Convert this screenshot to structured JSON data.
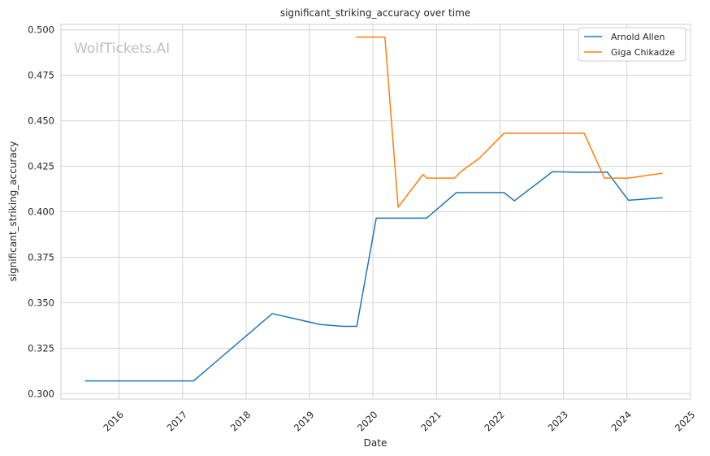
{
  "watermark": "WolfTickets.AI",
  "chart_data": {
    "type": "line",
    "title": "significant_striking_accuracy over time",
    "xlabel": "Date",
    "ylabel": "significant_striking_accuracy",
    "x_type": "date",
    "xlim": [
      "2015-02-01",
      "2025-01-01"
    ],
    "ylim": [
      0.297,
      0.503
    ],
    "x_ticks": [
      "2016-01-01",
      "2017-01-01",
      "2018-01-01",
      "2019-01-01",
      "2020-01-01",
      "2021-01-01",
      "2022-01-01",
      "2023-01-01",
      "2024-01-01",
      "2025-01-01"
    ],
    "x_tick_labels": [
      "2016",
      "2017",
      "2018",
      "2019",
      "2020",
      "2021",
      "2022",
      "2023",
      "2024",
      "2025"
    ],
    "y_ticks": [
      0.3,
      0.325,
      0.35,
      0.375,
      0.4,
      0.425,
      0.45,
      0.475,
      0.5
    ],
    "y_tick_labels": [
      "0.300",
      "0.325",
      "0.350",
      "0.375",
      "0.400",
      "0.425",
      "0.450",
      "0.475",
      "0.500"
    ],
    "grid": true,
    "legend_position": "top-right",
    "series": [
      {
        "name": "Arnold Allen",
        "color": "#1f77b4",
        "points": [
          [
            "2015-06-20",
            0.307
          ],
          [
            "2017-03-05",
            0.307
          ],
          [
            "2018-06-01",
            0.344
          ],
          [
            "2019-03-05",
            0.338
          ],
          [
            "2019-07-15",
            0.337
          ],
          [
            "2019-09-30",
            0.337
          ],
          [
            "2020-01-20",
            0.3965
          ],
          [
            "2020-11-05",
            0.3965
          ],
          [
            "2021-04-25",
            0.4105
          ],
          [
            "2022-01-25",
            0.4105
          ],
          [
            "2022-03-25",
            0.406
          ],
          [
            "2022-10-30",
            0.422
          ],
          [
            "2023-04-30",
            0.4217
          ],
          [
            "2023-09-10",
            0.4218
          ],
          [
            "2024-01-10",
            0.4063
          ],
          [
            "2024-07-25",
            0.4077
          ]
        ]
      },
      {
        "name": "Giga Chikadze",
        "color": "#ff7f0e",
        "points": [
          [
            "2019-09-25",
            0.496
          ],
          [
            "2020-03-10",
            0.496
          ],
          [
            "2020-05-25",
            0.4025
          ],
          [
            "2020-10-15",
            0.4205
          ],
          [
            "2020-11-05",
            0.4185
          ],
          [
            "2021-04-15",
            0.4185
          ],
          [
            "2021-05-20",
            0.422
          ],
          [
            "2021-09-05",
            0.4295
          ],
          [
            "2022-01-25",
            0.4432
          ],
          [
            "2023-04-30",
            0.4432
          ],
          [
            "2023-08-25",
            0.4185
          ],
          [
            "2024-01-10",
            0.4185
          ],
          [
            "2024-07-25",
            0.4212
          ]
        ]
      }
    ]
  }
}
